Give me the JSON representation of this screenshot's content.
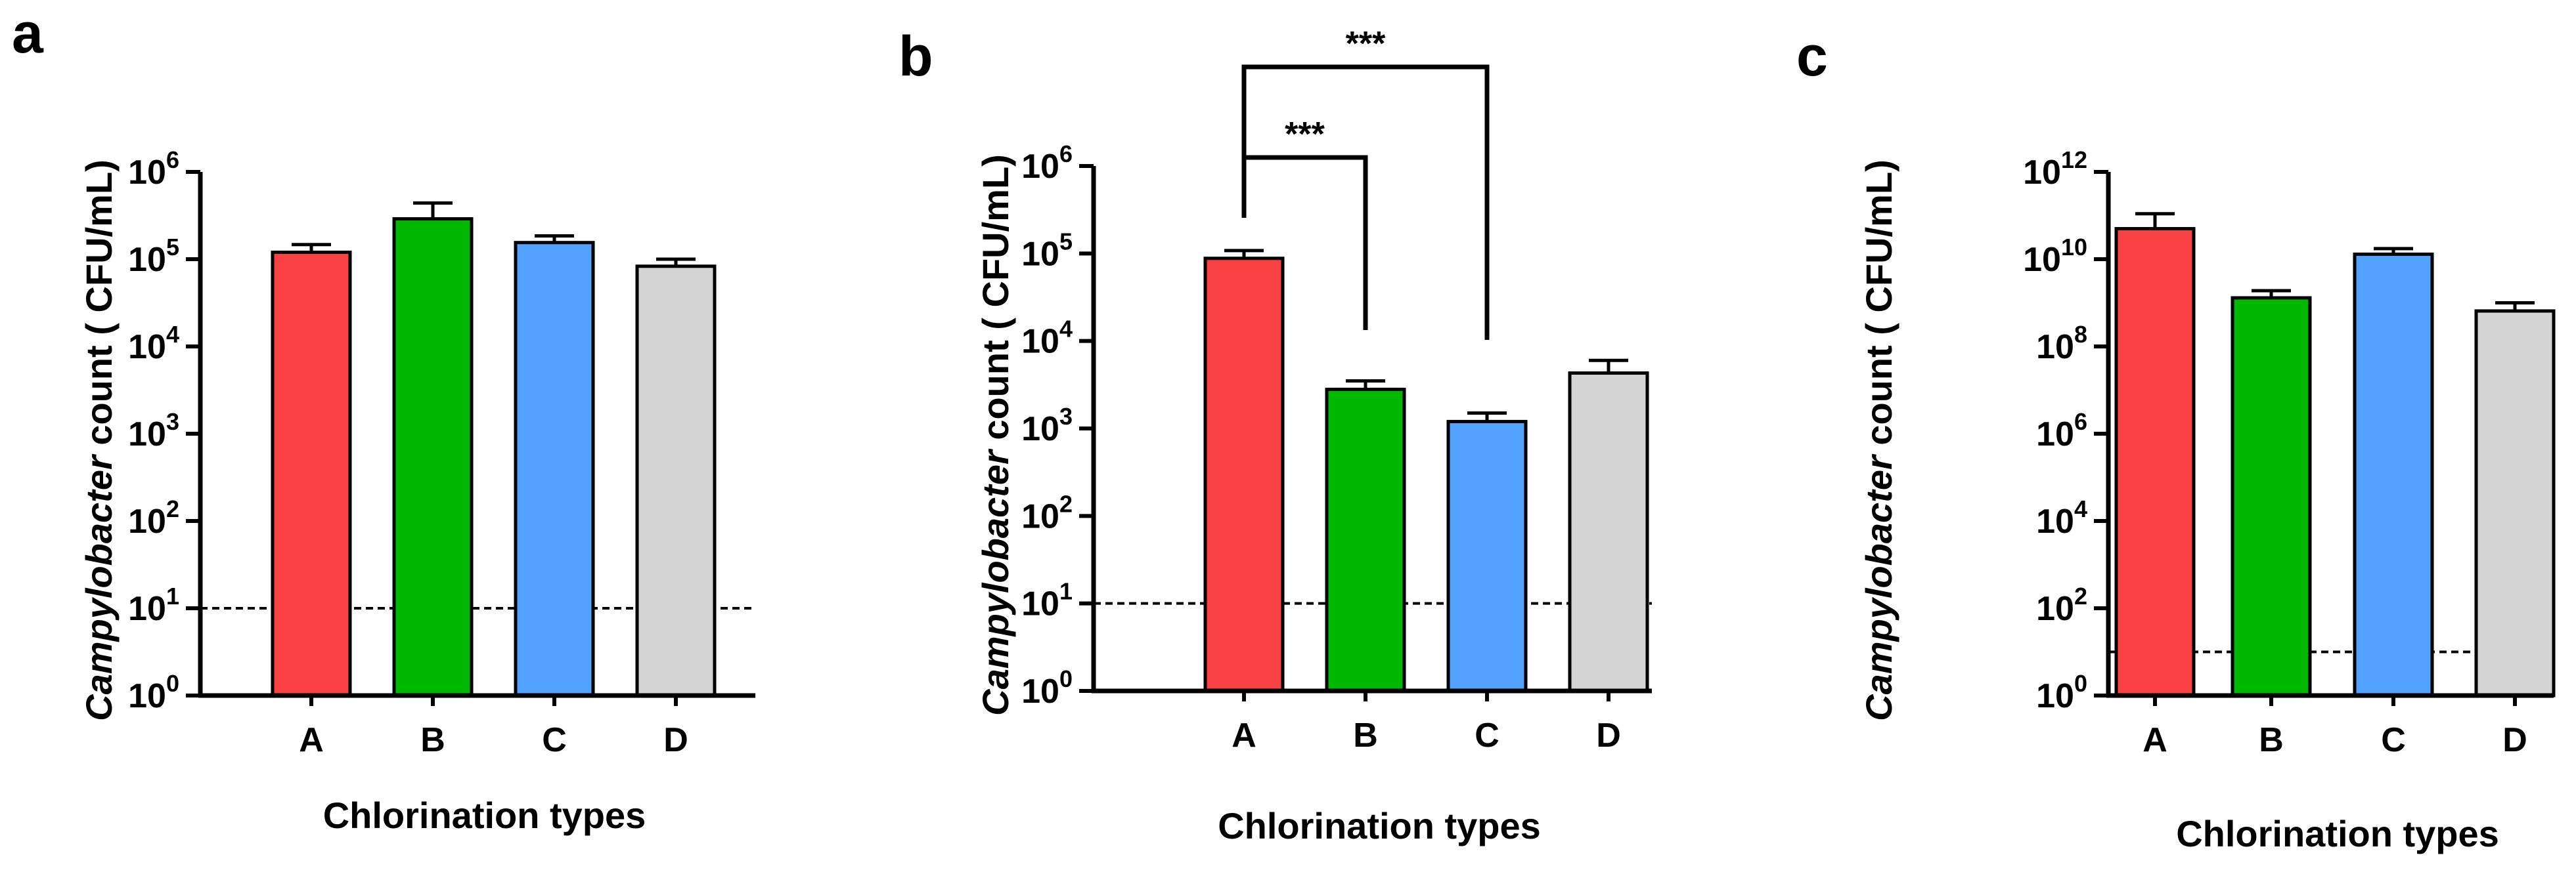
{
  "figure": {
    "panels": [
      "a",
      "b",
      "c"
    ]
  },
  "colors": {
    "A": "#f94144",
    "B": "#00b800",
    "C": "#53a2ff",
    "D": "#d4d4d4",
    "outline": "#000000"
  },
  "chart_data": [
    {
      "panel": "a",
      "type": "bar",
      "title": "",
      "xlabel": "Chlorination types",
      "ylabel_italic": "Campylobacter",
      "ylabel_rest": " count ( CFU/mL)",
      "yscale": "log10",
      "ylim_exponent": [
        0,
        6
      ],
      "ytick_exponents": [
        0,
        1,
        2,
        3,
        4,
        5,
        6
      ],
      "categories": [
        "A",
        "B",
        "C",
        "D"
      ],
      "values": [
        120000,
        290000,
        155000,
        83000
      ],
      "error_upper": [
        147000,
        440000,
        185000,
        100000
      ],
      "detection_limit": 10,
      "significance": []
    },
    {
      "panel": "b",
      "type": "bar",
      "title": "",
      "xlabel": "Chlorination types",
      "ylabel_italic": "Campylobacter",
      "ylabel_rest": " count ( CFU/mL)",
      "yscale": "log10",
      "ylim_exponent": [
        0,
        6
      ],
      "ytick_exponents": [
        0,
        1,
        2,
        3,
        4,
        5,
        6
      ],
      "categories": [
        "A",
        "B",
        "C",
        "D"
      ],
      "values": [
        88000,
        2800,
        1200,
        4300
      ],
      "error_upper": [
        108000,
        3500,
        1500,
        6000
      ],
      "detection_limit": 10,
      "significance": [
        {
          "from": "A",
          "to": "B",
          "label": "***"
        },
        {
          "from": "A",
          "to": "C",
          "label": "***"
        }
      ]
    },
    {
      "panel": "c",
      "type": "bar",
      "title": "",
      "xlabel": "Chlorination types",
      "ylabel_italic": "Campylobacter",
      "ylabel_rest": " count ( CFU/mL)",
      "yscale": "log10",
      "ylim_exponent": [
        0,
        12
      ],
      "ytick_exponents": [
        0,
        2,
        4,
        6,
        8,
        10,
        12
      ],
      "categories": [
        "A",
        "B",
        "C",
        "D"
      ],
      "values": [
        50000000000,
        1300000000,
        13000000000,
        650000000
      ],
      "error_upper": [
        110000000000,
        1900000000,
        17500000000,
        1000000000
      ],
      "detection_limit": 10,
      "significance": []
    }
  ]
}
